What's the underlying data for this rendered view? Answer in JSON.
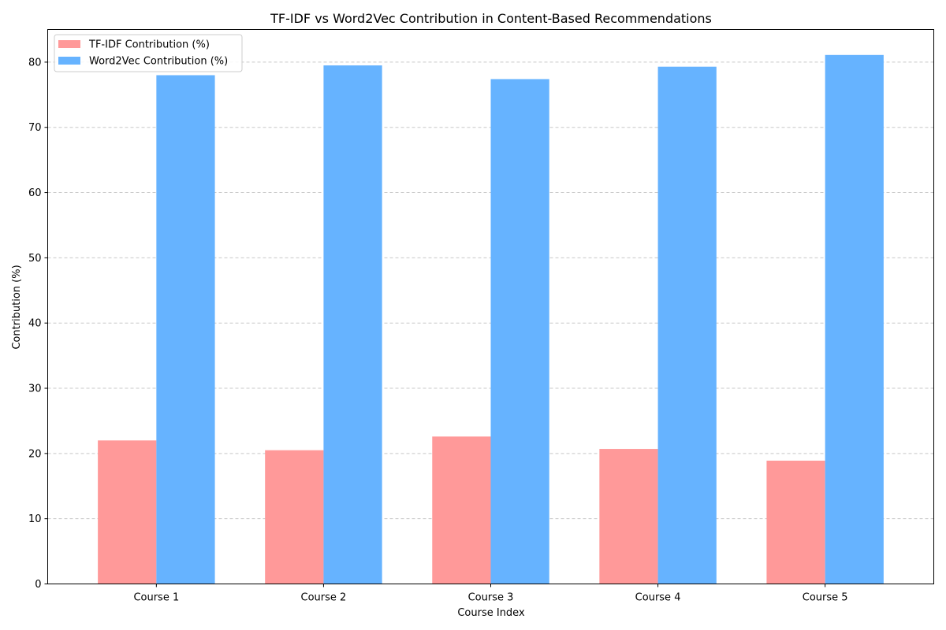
{
  "chart_data": {
    "type": "bar",
    "title": "TF-IDF vs Word2Vec Contribution in Content-Based Recommendations",
    "xlabel": "Course Index",
    "ylabel": "Contribution (%)",
    "categories": [
      "Course 1",
      "Course 2",
      "Course 3",
      "Course 4",
      "Course 5"
    ],
    "series": [
      {
        "name": "TF-IDF Contribution (%)",
        "color": "#ff9999",
        "values": [
          22.0,
          20.5,
          22.6,
          20.7,
          18.9
        ]
      },
      {
        "name": "Word2Vec Contribution (%)",
        "color": "#66b3ff",
        "values": [
          78.0,
          79.5,
          77.4,
          79.3,
          81.1
        ]
      }
    ],
    "ylim": [
      0,
      85
    ],
    "yticks": [
      0,
      10,
      20,
      30,
      40,
      50,
      60,
      70,
      80
    ],
    "grid": "y-axis dashed",
    "legend_position": "top-left"
  }
}
